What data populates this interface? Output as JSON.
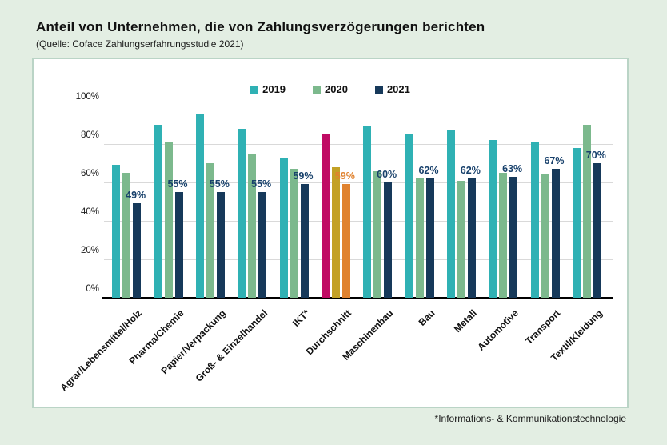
{
  "page": {
    "title": "Anteil von Unternehmen, die von Zahlungsverzögerungen berichten",
    "subtitle": "(Quelle: Coface Zahlungserfahrungsstudie 2021)",
    "footnote": "*Informations- & Kommunikationstechnologie"
  },
  "colors": {
    "background": "#e3eee3",
    "panel_border": "#bad4c6",
    "grid": "#d9d9d9",
    "label_navy": "#17406b",
    "label_orange": "#e0822f"
  },
  "chart_data": {
    "type": "bar",
    "title": "Anteil von Unternehmen, die von Zahlungsverzögerungen berichten",
    "subtitle": "(Quelle: Coface Zahlungserfahrungsstudie 2021)",
    "categories": [
      "Agrar/Lebensmittel/Holz",
      "Pharma/Chemie",
      "Papier/Verpackung",
      "Groß- & Einzelhandel",
      "IKT*",
      "Durchschnitt",
      "Maschinenbau",
      "Bau",
      "Metall",
      "Automotive",
      "Transport",
      "Textil/Kleidung"
    ],
    "series": [
      {
        "name": "2019",
        "color": "#2fb1b4",
        "values": [
          69,
          90,
          96,
          88,
          73,
          85,
          89,
          85,
          87,
          82,
          81,
          78
        ]
      },
      {
        "name": "2020",
        "color": "#7cb98d",
        "values": [
          65,
          81,
          70,
          75,
          67,
          68,
          66,
          62,
          61,
          65,
          64,
          90
        ]
      },
      {
        "name": "2021",
        "color": "#16395a",
        "values": [
          49,
          55,
          55,
          55,
          59,
          59,
          60,
          62,
          62,
          63,
          67,
          70
        ]
      }
    ],
    "bar_labels": {
      "on_series": "2021",
      "values": [
        "49%",
        "55%",
        "55%",
        "55%",
        "59%",
        "59%",
        "60%",
        "62%",
        "62%",
        "63%",
        "67%",
        "70%"
      ],
      "color": "#17406b",
      "highlight_index": 5,
      "highlight_color": "#e0822f"
    },
    "highlight_category": {
      "index": 5,
      "name": "Durchschnitt",
      "colors": [
        "#c00b64",
        "#c3a126",
        "#e0822f"
      ]
    },
    "y_axis": {
      "min": 0,
      "max": 100,
      "tick_step": 20,
      "ticks": [
        "0%",
        "20%",
        "40%",
        "60%",
        "80%",
        "100%"
      ],
      "grid": true
    },
    "legend_position": "top-center",
    "footnote": "*Informations- & Kommunikationstechnologie"
  },
  "legend": [
    {
      "label": "2019",
      "color": "#2fb1b4"
    },
    {
      "label": "2020",
      "color": "#7cb98d"
    },
    {
      "label": "2021",
      "color": "#16395a"
    }
  ]
}
